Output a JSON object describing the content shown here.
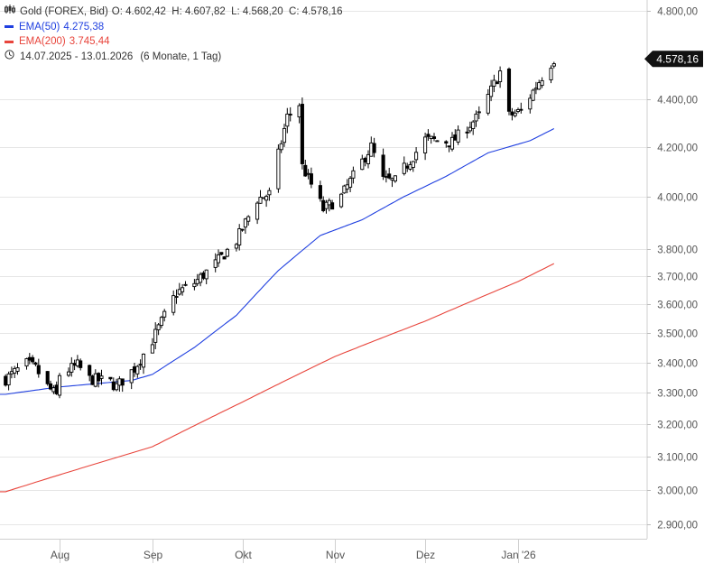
{
  "legend": {
    "instrument": "Gold (FOREX, Bid)",
    "ohlc": "O: 4.602,42  H: 4.607,82  L: 4.568,20  C: 4.578,16",
    "ema50_label": "EMA(50)",
    "ema50_value": "4.275,38",
    "ema200_label": "EMA(200)",
    "ema200_value": "3.745,44",
    "period": "14.07.2025 - 13.01.2026",
    "period_extra": "(6 Monate, 1 Tag)"
  },
  "colors": {
    "ema50": "#2040e0",
    "ema200": "#e8453c",
    "candle": "#000000",
    "grid": "#e6e6e6",
    "axis_text": "#555555",
    "price_tag_bg": "#111111",
    "price_tag_text": "#ffffff"
  },
  "icons": {
    "candles": "candlestick-icon",
    "period": "clock-icon"
  },
  "chart_data": {
    "type": "candlestick",
    "scale": "log",
    "ylim": [
      2860,
      4850
    ],
    "y_ticks": [
      {
        "v": 2900,
        "label": "2.900,00"
      },
      {
        "v": 3000,
        "label": "3.000,00"
      },
      {
        "v": 3100,
        "label": "3.100,00"
      },
      {
        "v": 3200,
        "label": "3.200,00"
      },
      {
        "v": 3300,
        "label": "3.300,00"
      },
      {
        "v": 3400,
        "label": "3.400,00"
      },
      {
        "v": 3500,
        "label": "3.500,00"
      },
      {
        "v": 3600,
        "label": "3.600,00"
      },
      {
        "v": 3700,
        "label": "3.700,00"
      },
      {
        "v": 3800,
        "label": "3.800,00"
      },
      {
        "v": 4000,
        "label": "4.000,00"
      },
      {
        "v": 4200,
        "label": "4.200,00"
      },
      {
        "v": 4400,
        "label": "4.400,00"
      },
      {
        "v": 4800,
        "label": "4.800,00"
      }
    ],
    "x_range": [
      "2025-07-14",
      "2026-01-13"
    ],
    "x_ticks": [
      {
        "date": "2025-08-01",
        "label": "Aug"
      },
      {
        "date": "2025-09-01",
        "label": "Sep"
      },
      {
        "date": "2025-10-01",
        "label": "Okt"
      },
      {
        "date": "2025-11-01",
        "label": "Nov"
      },
      {
        "date": "2025-12-01",
        "label": "Dez"
      },
      {
        "date": "2026-01-01",
        "label": "Jan '26"
      }
    ],
    "last_price": {
      "value": 4578.16,
      "label": "4.578,16"
    },
    "closes": [
      {
        "date": "2025-07-14",
        "c": 3345
      },
      {
        "date": "2025-07-21",
        "c": 3395
      },
      {
        "date": "2025-07-24",
        "c": 3380
      },
      {
        "date": "2025-07-28",
        "c": 3320
      },
      {
        "date": "2025-07-31",
        "c": 3290
      },
      {
        "date": "2025-08-01",
        "c": 3360
      },
      {
        "date": "2025-08-07",
        "c": 3390
      },
      {
        "date": "2025-08-11",
        "c": 3345
      },
      {
        "date": "2025-08-18",
        "c": 3335
      },
      {
        "date": "2025-08-20",
        "c": 3320
      },
      {
        "date": "2025-08-26",
        "c": 3380
      },
      {
        "date": "2025-09-01",
        "c": 3475
      },
      {
        "date": "2025-09-09",
        "c": 3640
      },
      {
        "date": "2025-09-15",
        "c": 3675
      },
      {
        "date": "2025-09-22",
        "c": 3745
      },
      {
        "date": "2025-09-29",
        "c": 3830
      },
      {
        "date": "2025-10-06",
        "c": 3990
      },
      {
        "date": "2025-10-10",
        "c": 4010
      },
      {
        "date": "2025-10-16",
        "c": 4325
      },
      {
        "date": "2025-10-20",
        "c": 4380
      },
      {
        "date": "2025-10-21",
        "c": 4120
      },
      {
        "date": "2025-10-28",
        "c": 3950
      },
      {
        "date": "2025-11-03",
        "c": 4000
      },
      {
        "date": "2025-11-13",
        "c": 4200
      },
      {
        "date": "2025-11-17",
        "c": 4065
      },
      {
        "date": "2025-11-21",
        "c": 4060
      },
      {
        "date": "2025-12-01",
        "c": 4230
      },
      {
        "date": "2025-12-10",
        "c": 4220
      },
      {
        "date": "2025-12-19",
        "c": 4330
      },
      {
        "date": "2025-12-26",
        "c": 4520
      },
      {
        "date": "2025-12-29",
        "c": 4330
      },
      {
        "date": "2026-01-02",
        "c": 4350
      },
      {
        "date": "2026-01-09",
        "c": 4500
      },
      {
        "date": "2026-01-13",
        "c": 4578.16
      }
    ],
    "ema50": [
      {
        "date": "2025-07-14",
        "v": 3295
      },
      {
        "date": "2025-07-31",
        "v": 3318
      },
      {
        "date": "2025-08-25",
        "v": 3340
      },
      {
        "date": "2025-09-01",
        "v": 3360
      },
      {
        "date": "2025-09-15",
        "v": 3450
      },
      {
        "date": "2025-09-29",
        "v": 3560
      },
      {
        "date": "2025-10-13",
        "v": 3720
      },
      {
        "date": "2025-10-27",
        "v": 3850
      },
      {
        "date": "2025-11-10",
        "v": 3910
      },
      {
        "date": "2025-11-24",
        "v": 4000
      },
      {
        "date": "2025-12-08",
        "v": 4080
      },
      {
        "date": "2025-12-22",
        "v": 4175
      },
      {
        "date": "2026-01-05",
        "v": 4225
      },
      {
        "date": "2026-01-13",
        "v": 4275.38
      }
    ],
    "ema200": [
      {
        "date": "2025-07-14",
        "v": 2995
      },
      {
        "date": "2025-08-01",
        "v": 3045
      },
      {
        "date": "2025-09-01",
        "v": 3130
      },
      {
        "date": "2025-10-01",
        "v": 3270
      },
      {
        "date": "2025-11-01",
        "v": 3420
      },
      {
        "date": "2025-12-01",
        "v": 3540
      },
      {
        "date": "2026-01-01",
        "v": 3680
      },
      {
        "date": "2026-01-13",
        "v": 3745.44
      }
    ]
  }
}
